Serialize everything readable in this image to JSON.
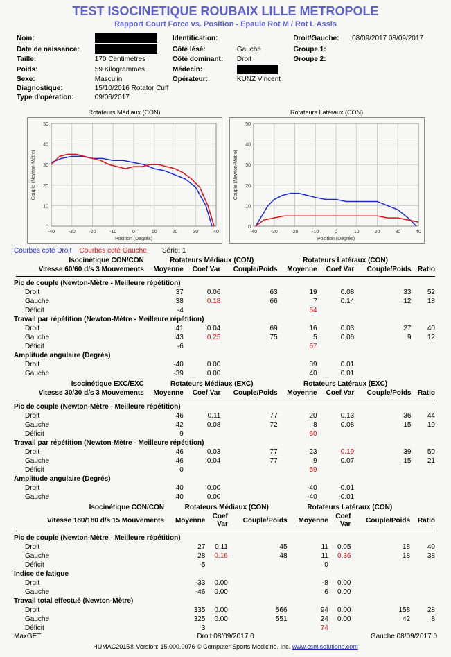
{
  "title": "TEST ISOCINETIQUE ROUBAIX LILLE METROPOLE",
  "subtitle": "Rapport Court Force vs. Position - Epaule Rot M / Rot L Assis",
  "header": {
    "nom_label": "Nom:",
    "dob_label": "Date de naissance:",
    "id_label": "Identification:",
    "side_label": "Droit/Gauche:",
    "side_value": "08/09/2017 08/09/2017",
    "taille_label": "Taille:",
    "taille_value": "170 Centimètres",
    "cote_lese_label": "Côté lésé:",
    "cote_lese_value": "Gauche",
    "group1_label": "Groupe 1:",
    "poids_label": "Poids:",
    "poids_value": "59 Kilogrammes",
    "medecin_label": "Médecin:",
    "cote_dom_label": "Côté dominant:",
    "cote_dom_value": "Droit",
    "group2_label": "Groupe 2:",
    "sexe_label": "Sexe:",
    "sexe_value": "Masculin",
    "operateur_label": "Opérateur:",
    "operateur_value": "KUNZ Vincent",
    "diag_label": "Diagnostique:",
    "diag_value": "15/10/2016 Rotator Cuff",
    "type_op_label": "Type d'opération:",
    "type_op_value": "09/06/2017"
  },
  "charts": {
    "left": {
      "caption": "Rotateurs Médiaux (CON)",
      "xlim": [
        -40,
        40
      ],
      "ylim": [
        0,
        50
      ],
      "xticks": [
        -40,
        -30,
        -20,
        -10,
        0,
        10,
        20,
        30,
        40
      ],
      "yticks": [
        0,
        10,
        20,
        30,
        40,
        50
      ],
      "xlabel": "Position (Degrés)",
      "ylabel": "Couple (Newton-Mètre)",
      "grid_color": "#cccccc",
      "series": [
        {
          "color": "#1a2bd6",
          "points": [
            [
              -40,
              31
            ],
            [
              -35,
              33
            ],
            [
              -30,
              34
            ],
            [
              -25,
              34
            ],
            [
              -20,
              33
            ],
            [
              -15,
              33
            ],
            [
              -10,
              32
            ],
            [
              -5,
              32
            ],
            [
              0,
              31
            ],
            [
              5,
              30
            ],
            [
              10,
              28
            ],
            [
              15,
              27
            ],
            [
              20,
              25
            ],
            [
              25,
              23
            ],
            [
              30,
              19
            ],
            [
              35,
              10
            ],
            [
              38,
              0
            ]
          ]
        },
        {
          "color": "#d11",
          "points": [
            [
              -40,
              30
            ],
            [
              -36,
              34
            ],
            [
              -32,
              35
            ],
            [
              -28,
              35
            ],
            [
              -24,
              34
            ],
            [
              -20,
              33
            ],
            [
              -16,
              32
            ],
            [
              -12,
              30
            ],
            [
              -8,
              29
            ],
            [
              -4,
              28
            ],
            [
              0,
              29
            ],
            [
              4,
              29
            ],
            [
              8,
              30
            ],
            [
              12,
              30
            ],
            [
              16,
              29
            ],
            [
              20,
              28
            ],
            [
              24,
              26
            ],
            [
              28,
              23
            ],
            [
              32,
              19
            ],
            [
              36,
              10
            ],
            [
              39,
              0
            ]
          ]
        }
      ]
    },
    "right": {
      "caption": "Rotateurs Latéraux (CON)",
      "xlim": [
        -40,
        40
      ],
      "ylim": [
        0,
        50
      ],
      "xticks": [
        -40,
        -30,
        -20,
        -10,
        0,
        10,
        20,
        30,
        40
      ],
      "yticks": [
        0,
        10,
        20,
        30,
        40,
        50
      ],
      "xlabel": "Position (Degrés)",
      "ylabel": "Couple (Newton-Mètre)",
      "grid_color": "#cccccc",
      "series": [
        {
          "color": "#1a2bd6",
          "points": [
            [
              -39,
              0
            ],
            [
              -36,
              5
            ],
            [
              -33,
              10
            ],
            [
              -30,
              13
            ],
            [
              -26,
              15
            ],
            [
              -22,
              16
            ],
            [
              -18,
              16
            ],
            [
              -14,
              15
            ],
            [
              -10,
              14
            ],
            [
              -5,
              13
            ],
            [
              0,
              13
            ],
            [
              5,
              12
            ],
            [
              10,
              12
            ],
            [
              15,
              12
            ],
            [
              20,
              12
            ],
            [
              25,
              10
            ],
            [
              30,
              8
            ],
            [
              35,
              4
            ],
            [
              39,
              0
            ]
          ]
        },
        {
          "color": "#d11",
          "points": [
            [
              -39,
              0
            ],
            [
              -35,
              3
            ],
            [
              -30,
              4
            ],
            [
              -25,
              5
            ],
            [
              -20,
              5
            ],
            [
              -15,
              5
            ],
            [
              -10,
              5
            ],
            [
              -5,
              5
            ],
            [
              0,
              5
            ],
            [
              5,
              5
            ],
            [
              10,
              5
            ],
            [
              15,
              5
            ],
            [
              20,
              5
            ],
            [
              25,
              4
            ],
            [
              30,
              4
            ],
            [
              35,
              3
            ],
            [
              40,
              2
            ]
          ]
        }
      ]
    }
  },
  "legend": {
    "droit": "Courbes coté Droit",
    "gauche": "Courbes coté Gauche",
    "serie": "Série: 1"
  },
  "colhdrs": {
    "med": "Rotateurs Médiaux",
    "lat": "Rotateurs Latéraux",
    "moy": "Moyenne",
    "coef": "Coef Var",
    "cp": "Couple/Poids",
    "ratio": "Ratio"
  },
  "blocks": [
    {
      "iso": "Isocinétique CON/CON",
      "speed": "Vitesse 60/60 d/s 3 Mouvements",
      "mode_suffix": "(CON)",
      "sections": [
        {
          "name": "Pic de couple (Newton-Mètre - Meilleure répétition)",
          "rows": [
            {
              "lbl": "Droit",
              "m": "37",
              "cv": "0.06",
              "cp": "63",
              "lm": "19",
              "lcv": "0.08",
              "lcp": "33",
              "r": "52"
            },
            {
              "lbl": "Gauche",
              "m": "38",
              "cv": "0.18",
              "cp": "66",
              "lm": "7",
              "lcv": "0.14",
              "lcp": "12",
              "r": "18",
              "cv_red": true
            },
            {
              "lbl": "Déficit",
              "m": "-4",
              "lm": "64",
              "lm_red": true
            }
          ]
        },
        {
          "name": "Travail par répétition (Newton-Mètre - Meilleure répétition)",
          "rows": [
            {
              "lbl": "Droit",
              "m": "41",
              "cv": "0.04",
              "cp": "69",
              "lm": "16",
              "lcv": "0.03",
              "lcp": "27",
              "r": "40"
            },
            {
              "lbl": "Gauche",
              "m": "43",
              "cv": "0.25",
              "cp": "75",
              "lm": "5",
              "lcv": "0.06",
              "lcp": "9",
              "r": "12",
              "cv_red": true
            },
            {
              "lbl": "Déficit",
              "m": "-6",
              "lm": "67",
              "lm_red": true
            }
          ]
        },
        {
          "name": "Amplitude angulaire (Degrés)",
          "rows": [
            {
              "lbl": "Droit",
              "m": "-40",
              "cv": "0.00",
              "lm": "39",
              "lcv": "0.01"
            },
            {
              "lbl": "Gauche",
              "m": "-39",
              "cv": "0.00",
              "lm": "40",
              "lcv": "0.01"
            }
          ]
        }
      ]
    },
    {
      "iso": "Isocinétique EXC/EXC",
      "speed": "Vitesse 30/30 d/s 3 Mouvements",
      "mode_suffix": "(EXC)",
      "sections": [
        {
          "name": "Pic de couple (Newton-Mètre - Meilleure répétition)",
          "rows": [
            {
              "lbl": "Droit",
              "m": "46",
              "cv": "0.11",
              "cp": "77",
              "lm": "20",
              "lcv": "0.13",
              "lcp": "36",
              "r": "44"
            },
            {
              "lbl": "Gauche",
              "m": "42",
              "cv": "0.08",
              "cp": "72",
              "lm": "8",
              "lcv": "0.08",
              "lcp": "15",
              "r": "19"
            },
            {
              "lbl": "Déficit",
              "m": "9",
              "lm": "60",
              "lm_red": true
            }
          ]
        },
        {
          "name": "Travail par répétition (Newton-Mètre - Meilleure répétition)",
          "rows": [
            {
              "lbl": "Droit",
              "m": "46",
              "cv": "0.03",
              "cp": "77",
              "lm": "23",
              "lcv": "0.19",
              "lcp": "39",
              "r": "50",
              "lcv_red": true
            },
            {
              "lbl": "Gauche",
              "m": "46",
              "cv": "0.04",
              "cp": "77",
              "lm": "9",
              "lcv": "0.07",
              "lcp": "15",
              "r": "21"
            },
            {
              "lbl": "Déficit",
              "m": "0",
              "lm": "59",
              "lm_red": true
            }
          ]
        },
        {
          "name": "Amplitude angulaire (Degrés)",
          "rows": [
            {
              "lbl": "Droit",
              "m": "40",
              "cv": "0.00",
              "lm": "-40",
              "lcv": "-0.01"
            },
            {
              "lbl": "Gauche",
              "m": "40",
              "cv": "0.00",
              "lm": "-40",
              "lcv": "-0.01"
            }
          ]
        }
      ]
    },
    {
      "iso": "Isocinétique CON/CON",
      "speed": "Vitesse 180/180 d/s 15 Mouvements",
      "mode_suffix": "(CON)",
      "coef_multiline": true,
      "sections": [
        {
          "name": "Pic de couple (Newton-Mètre - Meilleure répétition)",
          "rows": [
            {
              "lbl": "Droit",
              "m": "27",
              "cv": "0.11",
              "cp": "45",
              "lm": "11",
              "lcv": "0.05",
              "lcp": "18",
              "r": "40"
            },
            {
              "lbl": "Gauche",
              "m": "28",
              "cv": "0.16",
              "cp": "48",
              "lm": "11",
              "lcv": "0.36",
              "lcp": "18",
              "r": "38",
              "cv_red": true,
              "lcv_red": true
            },
            {
              "lbl": "Déficit",
              "m": "-5",
              "lm": "0"
            }
          ]
        },
        {
          "name": "Indice de fatigue",
          "rows": [
            {
              "lbl": "Droit",
              "m": "-33",
              "cv": "0.00",
              "lm": "-8",
              "lcv": "0.00"
            },
            {
              "lbl": "Gauche",
              "m": "-46",
              "cv": "0.00",
              "lm": "6",
              "lcv": "0.00"
            }
          ]
        },
        {
          "name": "Travail total effectué (Newton-Mètre)",
          "rows": [
            {
              "lbl": "Droit",
              "m": "335",
              "cv": "0.00",
              "cp": "566",
              "lm": "94",
              "lcv": "0.00",
              "lcp": "158",
              "r": "28"
            },
            {
              "lbl": "Gauche",
              "m": "325",
              "cv": "0.00",
              "cp": "551",
              "lm": "24",
              "lcv": "0.00",
              "lcp": "42",
              "r": "8"
            },
            {
              "lbl": "Déficit",
              "m": "3",
              "lm": "74",
              "lm_red": true
            }
          ]
        }
      ]
    }
  ],
  "foot": {
    "maxget": "MaxGET",
    "droit": "Droit 08/09/2017 0",
    "gauche": "Gauche 08/09/2017 0",
    "humac": "HUMAC2015® Version: 15.000.0076 © Computer Sports Medicine, Inc.",
    "link": "www.csmisolutions.com"
  }
}
